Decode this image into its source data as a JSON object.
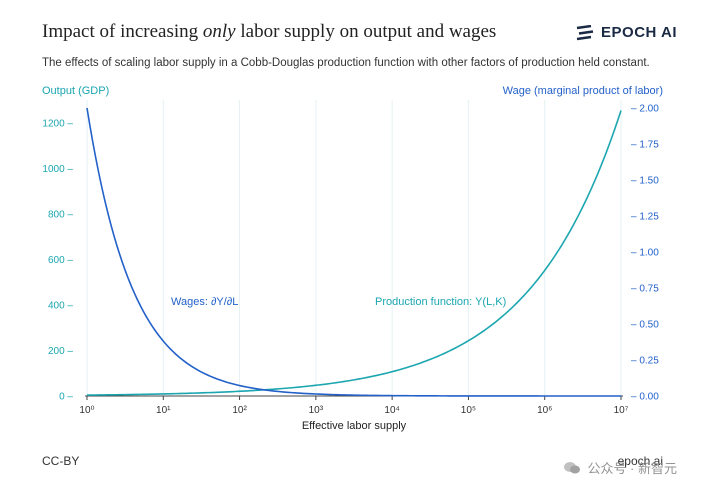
{
  "title_pre": "Impact of increasing ",
  "title_em": "only",
  "title_post": " labor supply on output and wages",
  "subtitle": "The effects of scaling labor supply in a Cobb-Douglas production function with other factors of production held constant.",
  "brand": "EPOCH AI",
  "footer_left": "CC-BY",
  "footer_right": "epoch.ai",
  "watermark": "公众号 · 新智元",
  "colors": {
    "output": "#1ba6b0",
    "wage": "#2361c9",
    "grid": "#e4f1f4",
    "axis": "#444444"
  },
  "chart_data": {
    "type": "line",
    "xlabel": "Effective labor supply",
    "x_scale": "log",
    "xlim": [
      1,
      10000000
    ],
    "x_ticks": [
      1,
      10,
      100,
      1000,
      10000,
      100000,
      1000000,
      10000000
    ],
    "x_tick_labels": [
      "10⁰",
      "10¹",
      "10²",
      "10³",
      "10⁴",
      "10⁵",
      "10⁶",
      "10⁷"
    ],
    "y_left": {
      "label": "Output (GDP)",
      "lim": [
        0,
        1265
      ],
      "ticks": [
        0,
        200,
        400,
        600,
        800,
        1000,
        1200
      ],
      "tick_labels": [
        "0 –",
        "200 –",
        "400 –",
        "600 –",
        "800 –",
        "1000 –",
        "1200 –"
      ]
    },
    "y_right": {
      "label": "Wage (marginal product of labor)",
      "lim": [
        0,
        2.0
      ],
      "ticks": [
        0,
        0.25,
        0.5,
        0.75,
        1.0,
        1.25,
        1.5,
        1.75,
        2.0
      ],
      "tick_labels": [
        "– 0.00",
        "– 0.25",
        "– 0.50",
        "– 0.75",
        "– 1.00",
        "– 1.25",
        "– 1.50",
        "– 1.75",
        "– 2.00"
      ]
    },
    "grid": true,
    "series": [
      {
        "name": "Production function: Y(L,K)",
        "axis": "left",
        "x": [
          1,
          10,
          100,
          1000,
          10000,
          100000,
          1000000,
          10000000
        ],
        "y": [
          4,
          8,
          16,
          32,
          63,
          126,
          251,
          1250
        ]
      },
      {
        "name": "Wages: ∂Y/∂L",
        "axis": "right",
        "x": [
          1,
          10,
          100,
          1000,
          10000,
          100000,
          1000000,
          10000000
        ],
        "y": [
          2.0,
          0.6,
          0.12,
          0.03,
          0.01,
          0.005,
          0.002,
          0.001
        ]
      }
    ]
  }
}
